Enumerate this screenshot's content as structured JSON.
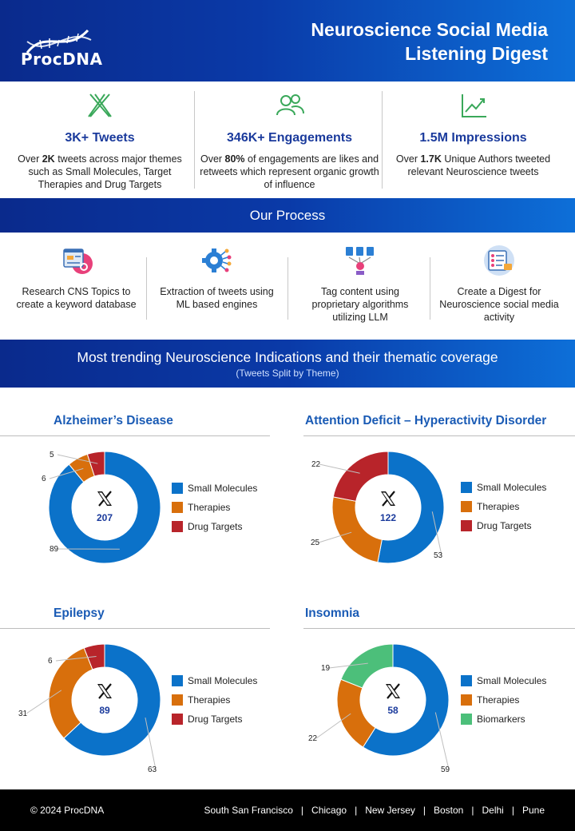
{
  "header": {
    "logo_text": "ProcDNA",
    "title_line1": "Neuroscience Social Media",
    "title_line2": "Listening Digest"
  },
  "kpis": [
    {
      "icon": "x-logo-icon",
      "title": "3K+ Tweets",
      "desc_pre": "Over ",
      "desc_bold": "2K",
      "desc_post": " tweets across major themes such as Small Molecules, Target Therapies and Drug Targets"
    },
    {
      "icon": "users-icon",
      "title": "346K+ Engagements",
      "desc_pre": "Over ",
      "desc_bold": "80%",
      "desc_post": " of engagements are likes and retweets which represent organic growth of influence"
    },
    {
      "icon": "line-chart-icon",
      "title": "1.5M Impressions",
      "desc_pre": "Over ",
      "desc_bold": "1.7K",
      "desc_post": " Unique Authors tweeted relevant Neuroscience tweets"
    }
  ],
  "process": {
    "title": "Our Process",
    "steps": [
      {
        "icon": "research-icon",
        "label": "Research CNS Topics to create a keyword database"
      },
      {
        "icon": "ml-engine-icon",
        "label": "Extraction of tweets using ML based engines"
      },
      {
        "icon": "llm-tag-icon",
        "label": "Tag content using proprietary algorithms utilizing LLM"
      },
      {
        "icon": "digest-icon",
        "label": "Create a Digest for Neuroscience social media activity"
      }
    ]
  },
  "trending": {
    "title": "Most trending Neuroscience Indications and their thematic coverage",
    "subtitle": "(Tweets Split by Theme)"
  },
  "colors": {
    "small_molecules": "#0b72c9",
    "therapies": "#d86f0c",
    "drug_targets": "#b8242a",
    "biomarkers": "#4cbf7a",
    "title_blue": "#1a3a9c",
    "panel_title": "#1a5bb5"
  },
  "chart_data": [
    {
      "type": "pie",
      "title": "Alzheimer’s Disease",
      "center_value": "207",
      "categories": [
        "Small Molecules",
        "Therapies",
        "Drug Targets"
      ],
      "values": [
        89,
        6,
        5
      ],
      "labels": [
        "89",
        "6",
        "5"
      ],
      "colors": [
        "#0b72c9",
        "#d86f0c",
        "#b8242a"
      ]
    },
    {
      "type": "pie",
      "title": "Attention Deficit – Hyperactivity Disorder",
      "center_value": "122",
      "categories": [
        "Small Molecules",
        "Therapies",
        "Drug Targets"
      ],
      "values": [
        53,
        25,
        22
      ],
      "labels": [
        "53",
        "25",
        "22"
      ],
      "colors": [
        "#0b72c9",
        "#d86f0c",
        "#b8242a"
      ]
    },
    {
      "type": "pie",
      "title": "Epilepsy",
      "center_value": "89",
      "categories": [
        "Small Molecules",
        "Therapies",
        "Drug Targets"
      ],
      "values": [
        63,
        31,
        6
      ],
      "labels": [
        "63",
        "31",
        "6"
      ],
      "colors": [
        "#0b72c9",
        "#d86f0c",
        "#b8242a"
      ]
    },
    {
      "type": "pie",
      "title": "Insomnia",
      "center_value": "58",
      "categories": [
        "Small Molecules",
        "Therapies",
        "Biomarkers"
      ],
      "values": [
        59,
        22,
        19
      ],
      "labels": [
        "59",
        "22",
        "19"
      ],
      "colors": [
        "#0b72c9",
        "#d86f0c",
        "#4cbf7a"
      ]
    }
  ],
  "footer": {
    "copyright": "© 2024 ProcDNA",
    "locations": [
      "South San Francisco",
      "Chicago",
      "New Jersey",
      "Boston",
      "Delhi",
      "Pune"
    ],
    "separator": "|"
  }
}
